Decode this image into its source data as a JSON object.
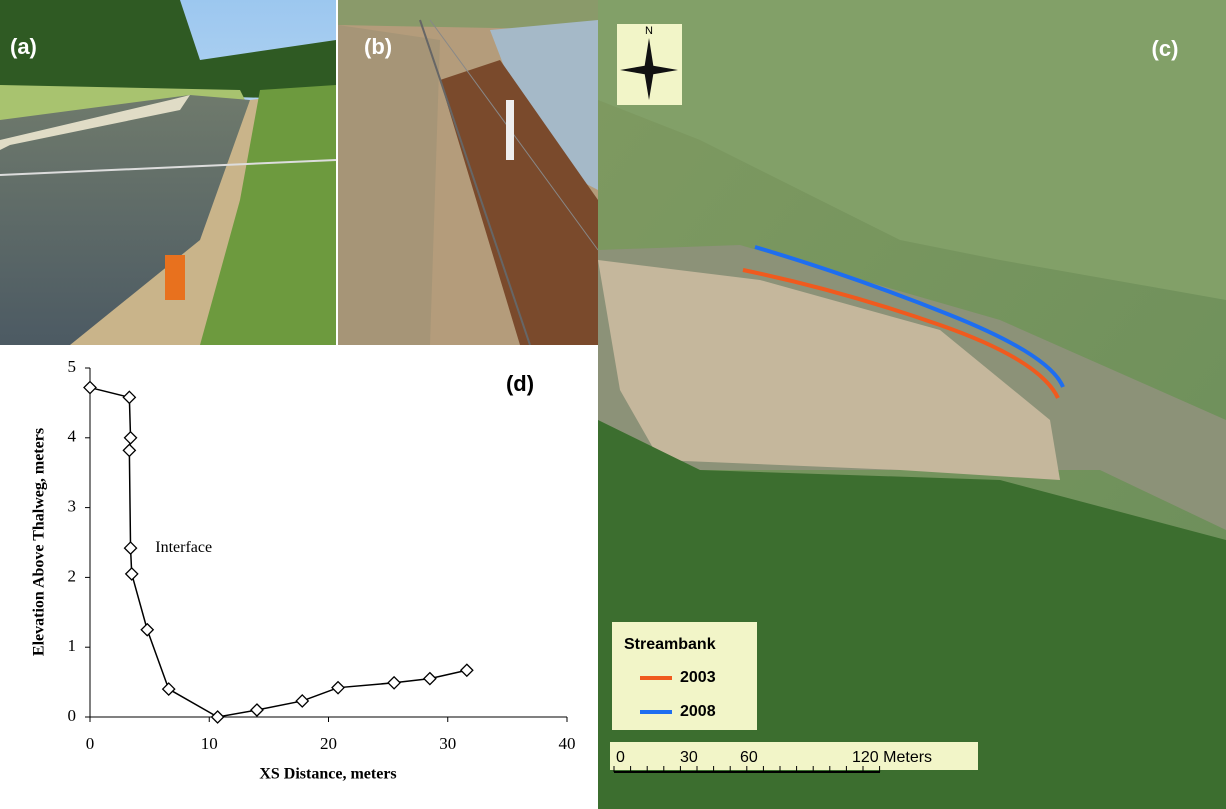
{
  "chart_data": {
    "type": "line",
    "x_label": "XS Distance, meters",
    "y_label": "Elevation Above Thalweg, meters",
    "panel_label": "(d)",
    "annotation": "Interface",
    "x": [
      0,
      3.3,
      3.4,
      3.3,
      3.4,
      3.5,
      4.8,
      6.6,
      10.7,
      14,
      17.8,
      20.8,
      25.5,
      28.5,
      31.6
    ],
    "series": [
      {
        "color": "#000000",
        "values": [
          4.72,
          4.58,
          4.0,
          3.82,
          2.42,
          2.05,
          1.25,
          0.4,
          0.0,
          0.1,
          0.23,
          0.42,
          0.49,
          0.55,
          0.67
        ]
      }
    ],
    "xlim": [
      0,
      40
    ],
    "xticks": [
      0,
      10,
      20,
      30,
      40
    ],
    "ylim": [
      0,
      5
    ],
    "yticks": [
      0,
      1,
      2,
      3,
      4,
      5
    ]
  },
  "photos": {
    "a": "(a)",
    "b": "(b)"
  },
  "map": {
    "panel_label": "(c)",
    "north": "N",
    "legend_title": "Streambank",
    "legend": [
      {
        "name": "2003",
        "color": "#f05a1e"
      },
      {
        "name": "2008",
        "color": "#1e6ef0"
      }
    ],
    "scale_labels": [
      "0",
      "30",
      "60",
      "120 Meters"
    ]
  }
}
